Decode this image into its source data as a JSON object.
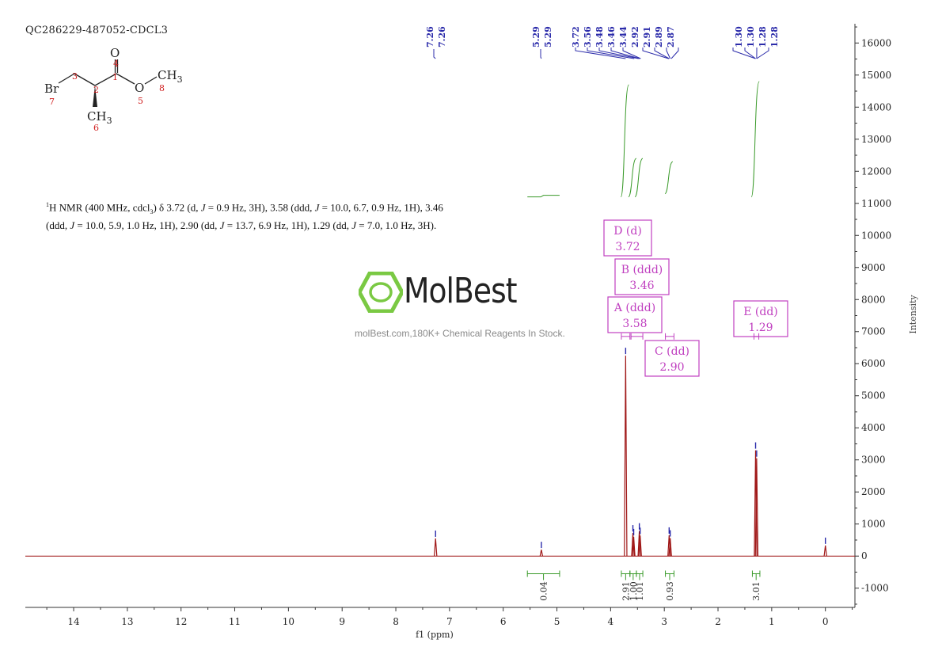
{
  "sample_id": "QC286229-487052-CDCL3",
  "nmr_description": "1H NMR (400 MHz, cdcl3) δ 3.72 (d, J = 0.9 Hz, 3H), 3.58 (ddd, J = 10.0, 6.7, 0.9 Hz, 1H), 3.46 (ddd, J = 10.0, 5.9, 1.0 Hz, 1H), 2.90 (dd, J = 13.7, 6.9 Hz, 1H), 1.29 (dd, J = 7.0, 1.0 Hz, 3H).",
  "nmr_parts": {
    "sup": "1",
    "line1_a": "H NMR (400 MHz, cdcl",
    "sub": "3",
    "line1_b": ") δ 3.72 (d, ",
    "j": "J",
    "line1_c": " = 0.9 Hz, 3H), 3.58 (ddd, ",
    "line1_d": " = 10.0, 6.7, 0.9 Hz, 1H), 3.46",
    "line2_a": "(ddd, ",
    "line2_b": " = 10.0, 5.9, 1.0 Hz, 1H), 2.90 (dd, ",
    "line2_c": " = 13.7, 6.9 Hz, 1H), 1.29 (dd, ",
    "line2_d": " = 7.0, 1.0 Hz, 3H)."
  },
  "watermark": {
    "logo_text": "MolBest",
    "tagline": "molBest.com,180K+ Chemical Reagents In Stock."
  },
  "molecule": {
    "atoms": [
      "O",
      "CH3",
      "Br",
      "O",
      "CH3"
    ],
    "atom_numbers": [
      "4",
      "1",
      "3",
      "2",
      "8",
      "5",
      "7",
      "6"
    ],
    "subscript_3": "3"
  },
  "colors": {
    "spectrum": "#a01818",
    "peak_marker": "#2b2baa",
    "integral": "#3a9a2a",
    "label_box": "#c040c0",
    "axis": "#333333",
    "atom_number": "#d02020"
  },
  "chart_data": {
    "type": "line",
    "xlabel": "f1 (ppm)",
    "ylabel": "Intensity",
    "xlim": [
      14.9,
      -0.55
    ],
    "ylim": [
      -1600,
      16600
    ],
    "x_ticks": [
      14,
      13,
      12,
      11,
      10,
      9,
      8,
      7,
      6,
      5,
      4,
      3,
      2,
      1,
      0
    ],
    "y_ticks": [
      -1000,
      0,
      1000,
      2000,
      3000,
      4000,
      5000,
      6000,
      7000,
      8000,
      9000,
      10000,
      11000,
      12000,
      13000,
      14000,
      15000,
      16000
    ],
    "peaks": [
      {
        "ppm": 7.26,
        "height": 550
      },
      {
        "ppm": 5.29,
        "height": 200
      },
      {
        "ppm": 3.72,
        "height": 6250
      },
      {
        "ppm": 3.585,
        "height": 720
      },
      {
        "ppm": 3.57,
        "height": 600
      },
      {
        "ppm": 3.465,
        "height": 780
      },
      {
        "ppm": 3.45,
        "height": 640
      },
      {
        "ppm": 2.91,
        "height": 650
      },
      {
        "ppm": 2.89,
        "height": 560
      },
      {
        "ppm": 1.3,
        "height": 3300
      },
      {
        "ppm": 1.28,
        "height": 3050
      },
      {
        "ppm": 0.0,
        "height": 330
      }
    ],
    "peak_labels_top": [
      {
        "group": [
          "7.26",
          "7.26"
        ],
        "ppm_center": 7.26
      },
      {
        "group": [
          "5.29",
          "5.29"
        ],
        "ppm_center": 5.29
      },
      {
        "group": [
          "3.72",
          "3.56",
          "3.48",
          "3.46",
          "3.44",
          "2.92",
          "2.91",
          "2.89",
          "2.87"
        ],
        "ppm_center": 2.9
      },
      {
        "group": [
          "1.30",
          "1.30",
          "1.28",
          "1.28"
        ],
        "ppm_center": 1.29
      }
    ],
    "integrals": [
      {
        "from": 5.55,
        "to": 4.95,
        "value": "0.04"
      },
      {
        "from": 3.8,
        "to": 3.64,
        "value": "2.91"
      },
      {
        "from": 3.64,
        "to": 3.52,
        "value": "1.00"
      },
      {
        "from": 3.52,
        "to": 3.4,
        "value": "1.01"
      },
      {
        "from": 2.98,
        "to": 2.82,
        "value": "0.93"
      },
      {
        "from": 1.36,
        "to": 1.22,
        "value": "3.01"
      }
    ],
    "multiplets": [
      {
        "label": "D (d)",
        "shift": "3.72"
      },
      {
        "label": "B (ddd)",
        "shift": "3.46"
      },
      {
        "label": "A (ddd)",
        "shift": "3.58"
      },
      {
        "label": "C (dd)",
        "shift": "2.90"
      },
      {
        "label": "E (dd)",
        "shift": "1.29"
      }
    ]
  }
}
